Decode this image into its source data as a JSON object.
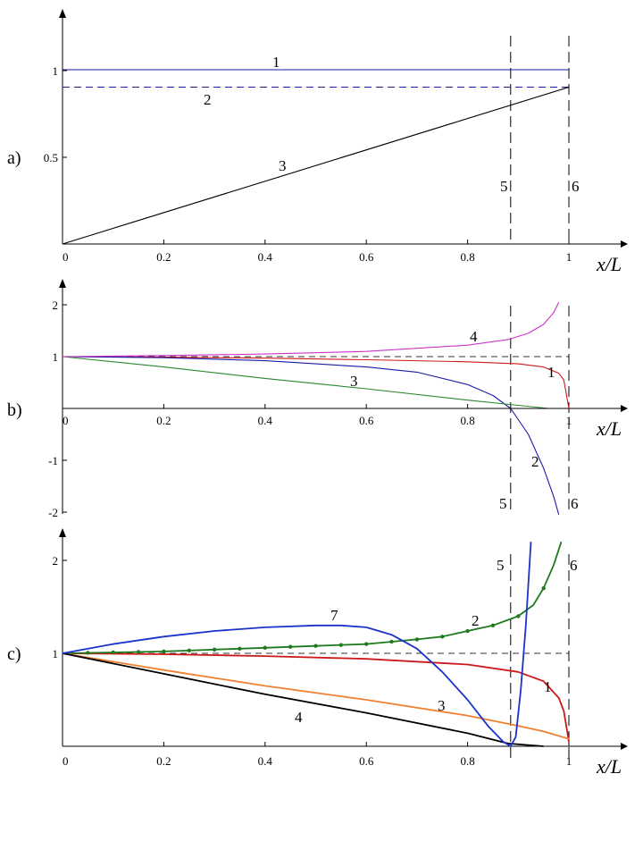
{
  "chart_data": [
    {
      "panel": "a)",
      "type": "line",
      "xlabel": "x/L",
      "ylabel": "",
      "xlim": [
        0,
        1
      ],
      "ylim": [
        0,
        1.2
      ],
      "xticks": [
        "0",
        "0.2",
        "0.4",
        "0.6",
        "0.8",
        "1"
      ],
      "yticks": [
        "0.5",
        "1"
      ],
      "series": [
        {
          "label": "1",
          "color": "#1a1aa8",
          "style": "solid",
          "points": [
            [
              0,
              1.0
            ],
            [
              1,
              1.0
            ]
          ]
        },
        {
          "label": "2",
          "color": "#1a1aa8",
          "style": "dashed",
          "points": [
            [
              0,
              0.9
            ],
            [
              1,
              0.9
            ]
          ]
        },
        {
          "label": "3",
          "color": "#000000",
          "style": "solid",
          "points": [
            [
              0,
              0.0
            ],
            [
              1,
              0.9
            ]
          ]
        }
      ],
      "vlines": [
        {
          "label": "5",
          "x": 0.885
        },
        {
          "label": "6",
          "x": 1.0
        }
      ]
    },
    {
      "panel": "b)",
      "type": "line",
      "xlabel": "x/L",
      "ylabel": "",
      "xlim": [
        0,
        1
      ],
      "ylim": [
        -2,
        2.4
      ],
      "xticks": [
        "0",
        "0.2",
        "0.4",
        "0.6",
        "0.8",
        "1"
      ],
      "yticks": [
        "-2",
        "-1",
        "1",
        "2"
      ],
      "hline": 1,
      "series": [
        {
          "label": "1",
          "color": "#cc1a1a",
          "style": "solid",
          "points": [
            [
              0,
              1.0
            ],
            [
              0.2,
              0.99
            ],
            [
              0.4,
              0.97
            ],
            [
              0.6,
              0.94
            ],
            [
              0.8,
              0.9
            ],
            [
              0.9,
              0.86
            ],
            [
              0.95,
              0.8
            ],
            [
              0.98,
              0.68
            ],
            [
              0.99,
              0.55
            ],
            [
              1.0,
              0.0
            ]
          ]
        },
        {
          "label": "2",
          "color": "#1a1aa8",
          "style": "solid",
          "points": [
            [
              0,
              1.0
            ],
            [
              0.2,
              0.98
            ],
            [
              0.4,
              0.92
            ],
            [
              0.6,
              0.8
            ],
            [
              0.7,
              0.7
            ],
            [
              0.8,
              0.46
            ],
            [
              0.85,
              0.25
            ],
            [
              0.885,
              0.0
            ],
            [
              0.92,
              -0.5
            ],
            [
              0.95,
              -1.15
            ],
            [
              0.97,
              -1.7
            ],
            [
              0.98,
              -2.05
            ]
          ]
        },
        {
          "label": "3",
          "color": "#2a8a2a",
          "style": "solid",
          "points": [
            [
              0,
              1.0
            ],
            [
              0.2,
              0.8
            ],
            [
              0.4,
              0.58
            ],
            [
              0.6,
              0.38
            ],
            [
              0.8,
              0.16
            ],
            [
              0.9,
              0.06
            ],
            [
              0.96,
              0.0
            ]
          ]
        },
        {
          "label": "4",
          "color": "#cc33cc",
          "style": "solid",
          "points": [
            [
              0,
              1.0
            ],
            [
              0.2,
              1.02
            ],
            [
              0.4,
              1.05
            ],
            [
              0.6,
              1.1
            ],
            [
              0.8,
              1.22
            ],
            [
              0.88,
              1.33
            ],
            [
              0.92,
              1.45
            ],
            [
              0.95,
              1.62
            ],
            [
              0.97,
              1.85
            ],
            [
              0.98,
              2.05
            ]
          ]
        },
        {
          "label": "",
          "color": "#000000",
          "style": "solid",
          "points": [
            [
              0,
              0.0
            ],
            [
              0.96,
              0.0
            ]
          ]
        }
      ],
      "vlines": [
        {
          "label": "5",
          "x": 0.885
        },
        {
          "label": "6",
          "x": 1.0
        }
      ]
    },
    {
      "panel": "c)",
      "type": "line",
      "xlabel": "x/L",
      "ylabel": "",
      "xlim": [
        0,
        1
      ],
      "ylim": [
        0,
        2.2
      ],
      "xticks": [
        "0",
        "0.2",
        "0.4",
        "0.6",
        "0.8",
        "1"
      ],
      "yticks": [
        "1",
        "2"
      ],
      "hline": 1,
      "series": [
        {
          "label": "1",
          "color": "#cc1a1a",
          "style": "solid",
          "points": [
            [
              0,
              1.0
            ],
            [
              0.2,
              0.99
            ],
            [
              0.4,
              0.97
            ],
            [
              0.6,
              0.94
            ],
            [
              0.8,
              0.88
            ],
            [
              0.9,
              0.8
            ],
            [
              0.95,
              0.7
            ],
            [
              0.98,
              0.52
            ],
            [
              0.99,
              0.38
            ],
            [
              1.0,
              0.05
            ]
          ]
        },
        {
          "label": "2",
          "color": "#1e7a1e",
          "style": "solid",
          "markers": true,
          "points": [
            [
              0,
              1.0
            ],
            [
              0.1,
              1.01
            ],
            [
              0.2,
              1.02
            ],
            [
              0.3,
              1.04
            ],
            [
              0.4,
              1.06
            ],
            [
              0.5,
              1.08
            ],
            [
              0.6,
              1.1
            ],
            [
              0.7,
              1.15
            ],
            [
              0.75,
              1.18
            ],
            [
              0.8,
              1.24
            ],
            [
              0.85,
              1.3
            ],
            [
              0.9,
              1.4
            ],
            [
              0.93,
              1.52
            ],
            [
              0.95,
              1.7
            ],
            [
              0.97,
              1.95
            ],
            [
              0.985,
              2.2
            ]
          ]
        },
        {
          "label": "3",
          "color": "#f08030",
          "style": "solid",
          "points": [
            [
              0,
              1.0
            ],
            [
              0.2,
              0.82
            ],
            [
              0.4,
              0.65
            ],
            [
              0.6,
              0.5
            ],
            [
              0.8,
              0.33
            ],
            [
              0.9,
              0.22
            ],
            [
              0.95,
              0.16
            ],
            [
              1.0,
              0.08
            ]
          ]
        },
        {
          "label": "4",
          "color": "#000000",
          "style": "solid",
          "points": [
            [
              0,
              1.0
            ],
            [
              0.2,
              0.78
            ],
            [
              0.4,
              0.56
            ],
            [
              0.6,
              0.36
            ],
            [
              0.8,
              0.14
            ],
            [
              0.88,
              0.03
            ],
            [
              0.95,
              0.0
            ]
          ]
        },
        {
          "label": "7",
          "color": "#1a33cc",
          "style": "solid",
          "points": [
            [
              0,
              1.0
            ],
            [
              0.1,
              1.1
            ],
            [
              0.2,
              1.18
            ],
            [
              0.3,
              1.24
            ],
            [
              0.4,
              1.28
            ],
            [
              0.5,
              1.3
            ],
            [
              0.55,
              1.3
            ],
            [
              0.6,
              1.28
            ],
            [
              0.65,
              1.2
            ],
            [
              0.7,
              1.05
            ],
            [
              0.75,
              0.8
            ],
            [
              0.8,
              0.5
            ],
            [
              0.84,
              0.22
            ],
            [
              0.87,
              0.05
            ],
            [
              0.885,
              0.0
            ],
            [
              0.895,
              0.1
            ],
            [
              0.905,
              0.6
            ],
            [
              0.915,
              1.3
            ],
            [
              0.925,
              2.2
            ]
          ]
        }
      ],
      "vlines": [
        {
          "label": "5",
          "x": 0.885
        },
        {
          "label": "6",
          "x": 1.0
        }
      ]
    }
  ]
}
